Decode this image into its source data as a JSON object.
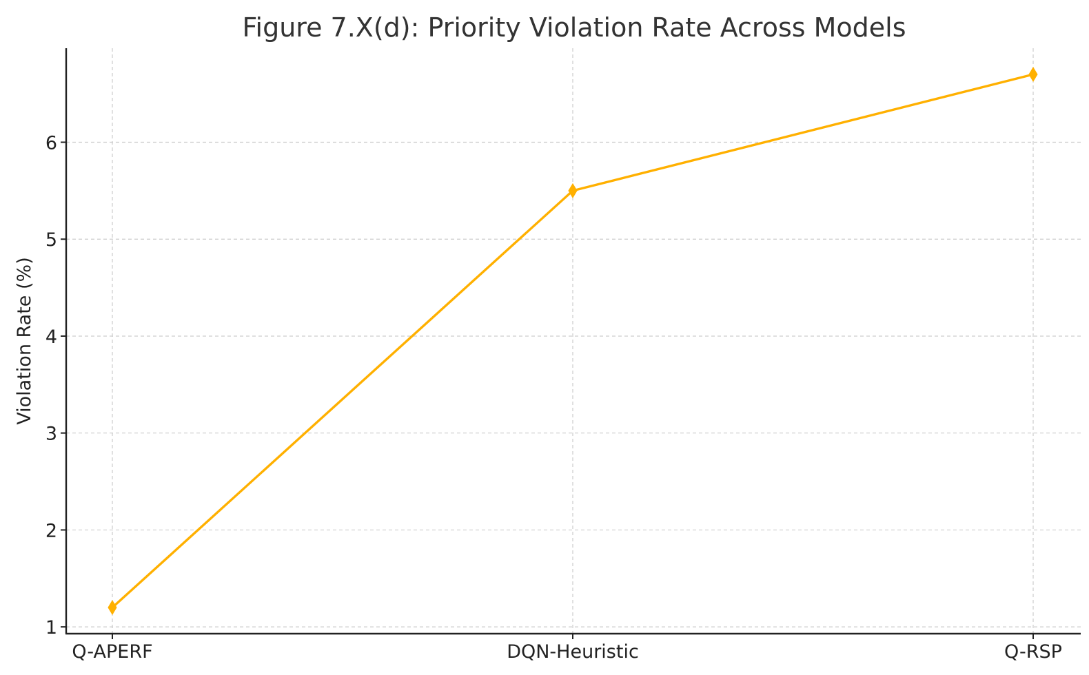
{
  "chart_data": {
    "type": "line",
    "title": "Figure 7.X(d): Priority Violation Rate Across Models",
    "xlabel": "",
    "ylabel": "Violation Rate (%)",
    "categories": [
      "Q-APERF",
      "DQN-Heuristic",
      "Q-RSP"
    ],
    "series": [
      {
        "values": [
          1.2,
          5.5,
          6.7
        ],
        "color": "#FFB000",
        "marker": "thin-diamond"
      }
    ],
    "yticks": [
      1,
      2,
      3,
      4,
      5,
      6
    ],
    "ylim": [
      0.93,
      6.97
    ],
    "grid": true,
    "legend": "none"
  }
}
